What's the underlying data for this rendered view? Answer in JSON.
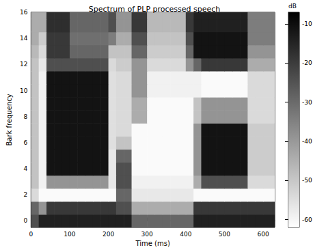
{
  "chart_data": {
    "type": "heatmap",
    "title": "Spectrum of PLP processed speech",
    "x_label": "Time (ms)",
    "y_label": "Bark frequency",
    "x": [
      10,
      30,
      50,
      70,
      90,
      110,
      130,
      150,
      170,
      190,
      210,
      230,
      250,
      270,
      290,
      310,
      330,
      350,
      370,
      390,
      410,
      430,
      450,
      470,
      490,
      510,
      530,
      550,
      570,
      590,
      610,
      630
    ],
    "y": [
      0,
      1,
      2,
      3,
      4,
      5,
      6,
      7,
      8,
      9,
      10,
      11,
      12,
      13,
      14,
      15,
      16
    ],
    "z": [
      [
        -24,
        -14,
        -14,
        -14,
        -14,
        -14,
        -14,
        -14,
        -14,
        -14,
        -14,
        -14,
        -14,
        -29,
        -29,
        -29,
        -29,
        -29,
        -29,
        -29,
        -29,
        -14,
        -14,
        -14,
        -14,
        -14,
        -14,
        -14,
        -14,
        -14,
        -14,
        -14
      ],
      [
        -29,
        -39,
        -19,
        -19,
        -19,
        -19,
        -19,
        -19,
        -19,
        -19,
        -19,
        -24,
        -24,
        -44,
        -44,
        -44,
        -44,
        -44,
        -44,
        -44,
        -44,
        -19,
        -19,
        -19,
        -19,
        -19,
        -19,
        -19,
        -19,
        -19,
        -19,
        -19
      ],
      [
        -54,
        -61,
        -61,
        -61,
        -61,
        -61,
        -61,
        -61,
        -61,
        -61,
        -61,
        -29,
        -29,
        -57,
        -57,
        -57,
        -57,
        -57,
        -57,
        -57,
        -57,
        -61,
        -61,
        -61,
        -61,
        -61,
        -61,
        -61,
        -61,
        -61,
        -61,
        -61
      ],
      [
        -49,
        -59,
        -39,
        -39,
        -39,
        -39,
        -39,
        -39,
        -39,
        -39,
        -57,
        -24,
        -24,
        -59,
        -59,
        -59,
        -59,
        -59,
        -59,
        -59,
        -59,
        -44,
        -24,
        -24,
        -24,
        -24,
        -24,
        -24,
        -54,
        -54,
        -54,
        -54
      ],
      [
        -49,
        -59,
        -11,
        -11,
        -11,
        -11,
        -11,
        -11,
        -11,
        -11,
        -57,
        -24,
        -24,
        -61,
        -61,
        -61,
        -61,
        -61,
        -61,
        -61,
        -61,
        -39,
        -11,
        -11,
        -11,
        -11,
        -11,
        -11,
        -51,
        -51,
        -51,
        -51
      ],
      [
        -49,
        -59,
        -11,
        -11,
        -11,
        -11,
        -11,
        -11,
        -11,
        -11,
        -57,
        -29,
        -29,
        -61,
        -61,
        -61,
        -61,
        -61,
        -61,
        -61,
        -61,
        -39,
        -11,
        -11,
        -11,
        -11,
        -11,
        -11,
        -51,
        -51,
        -51,
        -51
      ],
      [
        -49,
        -59,
        -11,
        -11,
        -11,
        -11,
        -11,
        -11,
        -11,
        -11,
        -55,
        -49,
        -49,
        -61,
        -61,
        -61,
        -61,
        -61,
        -61,
        -61,
        -61,
        -39,
        -11,
        -11,
        -11,
        -11,
        -11,
        -11,
        -51,
        -51,
        -51,
        -51
      ],
      [
        -49,
        -59,
        -11,
        -11,
        -11,
        -11,
        -11,
        -11,
        -11,
        -11,
        -55,
        -54,
        -54,
        -61,
        -61,
        -61,
        -61,
        -61,
        -61,
        -61,
        -61,
        -39,
        -11,
        -11,
        -11,
        -11,
        -11,
        -11,
        -51,
        -51,
        -51,
        -51
      ],
      [
        -49,
        -59,
        -11,
        -11,
        -11,
        -11,
        -11,
        -11,
        -11,
        -11,
        -55,
        -54,
        -54,
        -44,
        -44,
        -61,
        -61,
        -61,
        -61,
        -61,
        -61,
        -49,
        -39,
        -39,
        -39,
        -39,
        -39,
        -39,
        -54,
        -54,
        -54,
        -54
      ],
      [
        -49,
        -59,
        -11,
        -11,
        -11,
        -11,
        -11,
        -11,
        -11,
        -11,
        -55,
        -54,
        -54,
        -44,
        -44,
        -61,
        -61,
        -61,
        -61,
        -61,
        -61,
        -49,
        -39,
        -39,
        -39,
        -39,
        -39,
        -39,
        -54,
        -54,
        -54,
        -54
      ],
      [
        -49,
        -59,
        -11,
        -11,
        -11,
        -11,
        -11,
        -11,
        -11,
        -11,
        -55,
        -54,
        -54,
        -39,
        -39,
        -59,
        -59,
        -59,
        -59,
        -59,
        -59,
        -59,
        -61,
        -61,
        -61,
        -61,
        -61,
        -61,
        -54,
        -54,
        -54,
        -54
      ],
      [
        -49,
        -59,
        -11,
        -11,
        -11,
        -11,
        -11,
        -11,
        -11,
        -11,
        -55,
        -54,
        -54,
        -39,
        -39,
        -59,
        -59,
        -59,
        -59,
        -59,
        -59,
        -59,
        -61,
        -61,
        -61,
        -61,
        -61,
        -61,
        -54,
        -54,
        -54,
        -54
      ],
      [
        -49,
        -57,
        -24,
        -24,
        -24,
        -24,
        -24,
        -24,
        -24,
        -24,
        -54,
        -51,
        -51,
        -39,
        -39,
        -54,
        -54,
        -54,
        -54,
        -54,
        -39,
        -29,
        -19,
        -19,
        -19,
        -19,
        -19,
        -19,
        -44,
        -44,
        -44,
        -44
      ],
      [
        -47,
        -54,
        -19,
        -19,
        -19,
        -29,
        -29,
        -29,
        -29,
        -29,
        -49,
        -49,
        -49,
        -29,
        -29,
        -51,
        -51,
        -51,
        -51,
        -51,
        -29,
        -11,
        -11,
        -11,
        -11,
        -11,
        -11,
        -11,
        -39,
        -39,
        -39,
        -39
      ],
      [
        -44,
        -51,
        -19,
        -19,
        -19,
        -31,
        -31,
        -31,
        -31,
        -31,
        -34,
        -44,
        -44,
        -24,
        -24,
        -49,
        -49,
        -49,
        -49,
        -49,
        -24,
        -11,
        -11,
        -11,
        -11,
        -11,
        -11,
        -11,
        -34,
        -34,
        -34,
        -34
      ],
      [
        -44,
        -44,
        -17,
        -17,
        -17,
        -29,
        -29,
        -29,
        -29,
        -29,
        -24,
        -39,
        -39,
        -19,
        -19,
        -47,
        -47,
        -47,
        -47,
        -47,
        -19,
        -14,
        -14,
        -14,
        -14,
        -14,
        -14,
        -14,
        -34,
        -34,
        -34,
        -34
      ],
      [
        -44,
        -44,
        -17,
        -17,
        -17,
        -29,
        -29,
        -29,
        -29,
        -29,
        -24,
        -39,
        -39,
        -19,
        -19,
        -47,
        -47,
        -47,
        -47,
        -47,
        -19,
        -14,
        -14,
        -14,
        -14,
        -14,
        -14,
        -14,
        -34,
        -34,
        -34,
        -34
      ]
    ],
    "xlim": [
      0,
      630
    ],
    "xticks": [
      0,
      100,
      200,
      300,
      400,
      500,
      600
    ],
    "ylim": [
      -0.5,
      16
    ],
    "yticks": [
      0,
      2,
      4,
      6,
      8,
      10,
      12,
      14,
      16
    ],
    "colorbar": {
      "label": "dB",
      "range": [
        -62,
        -7
      ],
      "ticks": [
        -10,
        -20,
        -30,
        -40,
        -50,
        -60
      ]
    }
  }
}
